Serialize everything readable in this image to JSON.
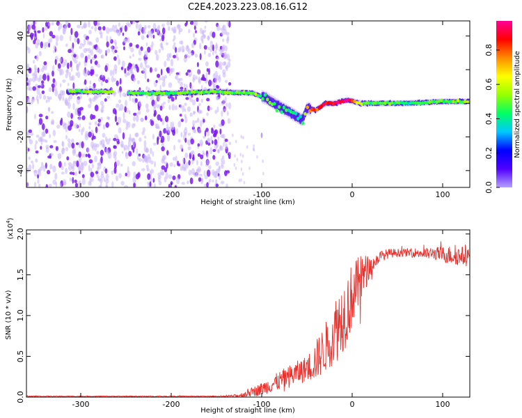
{
  "title": "C2E4.2023.223.08.16.G12",
  "chart_data": [
    {
      "type": "heatmap",
      "xlabel": "Height of straight line (km)",
      "ylabel": "Frequency (Hz)",
      "xlim": [
        -360,
        130
      ],
      "ylim": [
        -50,
        49
      ],
      "xticks": [
        -300,
        -200,
        -100,
        0,
        100
      ],
      "xtick_labels": [
        "-300",
        "-200",
        "-100",
        "0",
        "100"
      ],
      "yticks": [
        -40,
        -20,
        0,
        20,
        40
      ],
      "ytick_labels": [
        "-40",
        "-20",
        "0",
        "20",
        "40"
      ],
      "colorbar": {
        "label": "Normalized spectral amplitude",
        "range": [
          0,
          0.97
        ],
        "ticks": [
          0.0,
          0.2,
          0.4,
          0.6,
          0.8
        ],
        "tick_labels": [
          "0.0",
          "0.2",
          "0.4",
          "0.6",
          "0.8"
        ],
        "colormap": [
          "#b4a0ff",
          "#5000ff",
          "#0000ff",
          "#00c8ff",
          "#00ff64",
          "#96ff00",
          "#ffff00",
          "#ff8c00",
          "#ff0000",
          "#ff0096"
        ]
      },
      "ridge": [
        {
          "x": -310,
          "freq": 7,
          "amp": 0.5
        },
        {
          "x": -270,
          "freq": 7,
          "amp": 0.5
        },
        {
          "x": -240,
          "freq": 6,
          "amp": 0.45
        },
        {
          "x": -200,
          "freq": 6,
          "amp": 0.45
        },
        {
          "x": -150,
          "freq": 7,
          "amp": 0.5
        },
        {
          "x": -110,
          "freq": 6,
          "amp": 0.5
        },
        {
          "x": -95,
          "freq": 3,
          "amp": 0.45
        },
        {
          "x": -80,
          "freq": -2,
          "amp": 0.45
        },
        {
          "x": -70,
          "freq": -5,
          "amp": 0.4
        },
        {
          "x": -55,
          "freq": -10,
          "amp": 0.35
        },
        {
          "x": -50,
          "freq": -3,
          "amp": 0.7
        },
        {
          "x": -40,
          "freq": -4,
          "amp": 0.8
        },
        {
          "x": -30,
          "freq": 0,
          "amp": 0.85
        },
        {
          "x": -20,
          "freq": 0,
          "amp": 0.9
        },
        {
          "x": -5,
          "freq": 2,
          "amp": 0.95
        },
        {
          "x": 10,
          "freq": 0,
          "amp": 0.5
        },
        {
          "x": 60,
          "freq": 0,
          "amp": 0.45
        },
        {
          "x": 100,
          "freq": 1,
          "amp": 0.5
        },
        {
          "x": 130,
          "freq": 1,
          "amp": 0.55
        }
      ]
    },
    {
      "type": "line",
      "xlabel": "Height of straight line (km)",
      "ylabel": "SNR (10 * v/v)",
      "y_multiplier": "(x10^4)",
      "xlim": [
        -360,
        130
      ],
      "ylim": [
        0,
        2.05
      ],
      "xticks": [
        -300,
        -200,
        -100,
        0,
        100
      ],
      "xtick_labels": [
        "-300",
        "-200",
        "-100",
        "0",
        "100"
      ],
      "yticks": [
        0,
        0.5,
        1.0,
        1.5,
        2.0
      ],
      "ytick_labels": [
        "0.0",
        "0.5",
        "1.0",
        "1.5",
        "2.0"
      ],
      "color": "#e8322e",
      "series": [
        {
          "x": [
            -360,
            -300,
            -200,
            -140,
            -125,
            -115,
            -100,
            -90,
            -80,
            -70,
            -60,
            -50,
            -40,
            -30,
            -25,
            -20,
            -15,
            -10,
            -5,
            0,
            5,
            10,
            15,
            20,
            25,
            30,
            40,
            50,
            60,
            70,
            80,
            90,
            100,
            110,
            120,
            130
          ],
          "values": [
            0.01,
            0.01,
            0.01,
            0.01,
            0.02,
            0.05,
            0.1,
            0.15,
            0.2,
            0.25,
            0.3,
            0.35,
            0.45,
            0.6,
            0.7,
            0.8,
            0.9,
            1.0,
            1.1,
            1.25,
            1.35,
            1.45,
            1.55,
            1.6,
            1.65,
            1.72,
            1.76,
            1.77,
            1.77,
            1.77,
            1.76,
            1.76,
            1.75,
            1.74,
            1.73,
            1.72
          ],
          "spread": [
            0.005,
            0.005,
            0.005,
            0.005,
            0.02,
            0.05,
            0.08,
            0.1,
            0.12,
            0.14,
            0.15,
            0.16,
            0.25,
            0.3,
            0.35,
            0.4,
            0.45,
            0.45,
            0.45,
            0.4,
            0.35,
            0.3,
            0.2,
            0.12,
            0.08,
            0.07,
            0.06,
            0.05,
            0.05,
            0.06,
            0.07,
            0.08,
            0.1,
            0.12,
            0.12,
            0.12
          ]
        }
      ]
    }
  ]
}
